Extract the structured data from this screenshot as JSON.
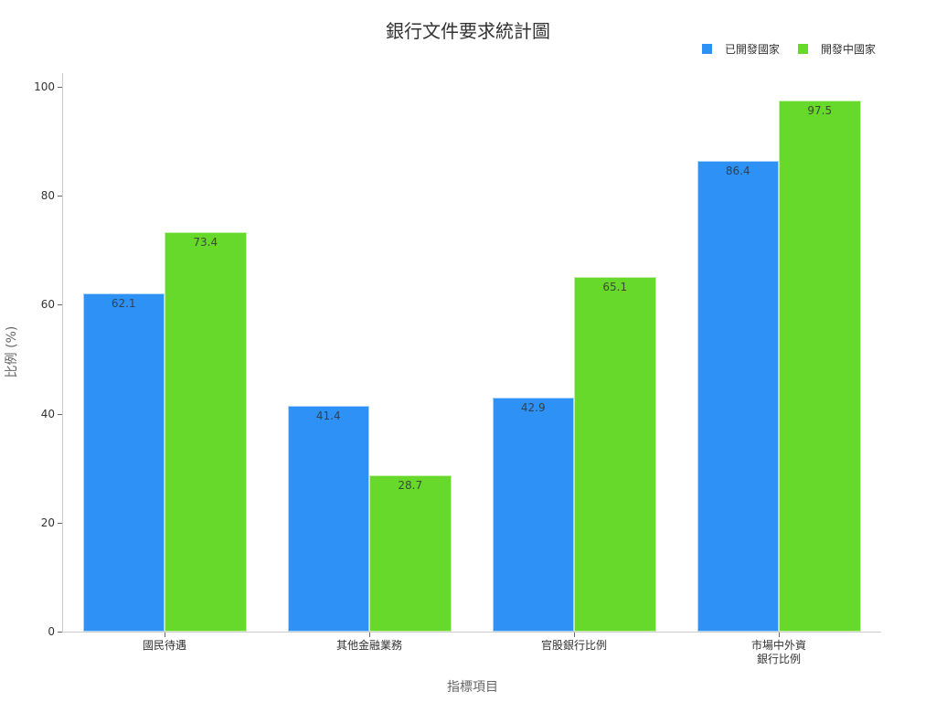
{
  "chart_data": {
    "type": "bar",
    "title": "銀行文件要求統計圖",
    "xlabel": "指標項目",
    "ylabel": "比例 (%)",
    "ylim": [
      0,
      100
    ],
    "yticks": [
      0,
      20,
      40,
      60,
      80,
      100
    ],
    "grid": false,
    "legend_position": "top-right",
    "categories": [
      "國民待遇",
      "其他金融業務",
      "官股銀行比例",
      "市場中外資\n銀行比例"
    ],
    "series": [
      {
        "name": "已開發國家",
        "color": "#2e91f5",
        "values": [
          62.1,
          41.4,
          42.9,
          86.4
        ]
      },
      {
        "name": "開發中國家",
        "color": "#66d92a",
        "values": [
          73.4,
          28.7,
          65.1,
          97.5
        ]
      }
    ]
  },
  "labels": {
    "title": "銀行文件要求統計圖",
    "xlabel": "指標項目",
    "ylabel": "比例 (%)",
    "legend": [
      "已開發國家",
      "開發中國家"
    ],
    "yticks": [
      "0",
      "20",
      "40",
      "60",
      "80",
      "100"
    ],
    "categories": [
      "國民待遇",
      "其他金融業務",
      "官股銀行比例",
      "市場中外資\n銀行比例"
    ],
    "series0_values": [
      "62.1",
      "41.4",
      "42.9",
      "86.4"
    ],
    "series1_values": [
      "73.4",
      "28.7",
      "65.1",
      "97.5"
    ]
  }
}
